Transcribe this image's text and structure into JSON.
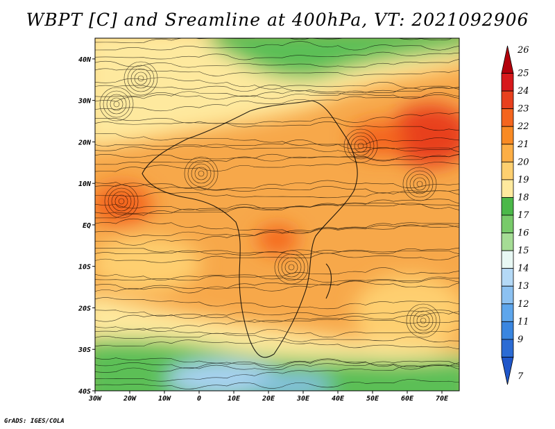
{
  "title": "WBPT [C] and Sreamline at 400hPa, VT: 2021092906",
  "footer": "GrADS: IGES/COLA",
  "map": {
    "lon_ticks": [
      "30W",
      "20W",
      "10W",
      "0",
      "10E",
      "20E",
      "30E",
      "40E",
      "50E",
      "60E",
      "70E"
    ],
    "lat_ticks": [
      "40N",
      "30N",
      "20N",
      "10N",
      "EQ",
      "10S",
      "20S",
      "30S",
      "40S"
    ],
    "lon_range": [
      -30,
      75
    ],
    "lat_range": [
      -40,
      45
    ]
  },
  "colorbar": {
    "levels": [
      "26",
      "25",
      "24",
      "23",
      "22",
      "21",
      "20",
      "19",
      "18",
      "17",
      "16",
      "15",
      "14",
      "13",
      "12",
      "11",
      "9",
      "7"
    ],
    "colors": [
      "#b3000b",
      "#d7191c",
      "#e8401e",
      "#f4651e",
      "#f98a23",
      "#fdae45",
      "#fecf6f",
      "#fee99e",
      "#4bb849",
      "#78ca6a",
      "#a5dc95",
      "#e8f8f4",
      "#b4d9f6",
      "#8cc1f1",
      "#5ea6ec",
      "#3a86e0",
      "#2b6bd4",
      "#1f56c9"
    ]
  }
}
